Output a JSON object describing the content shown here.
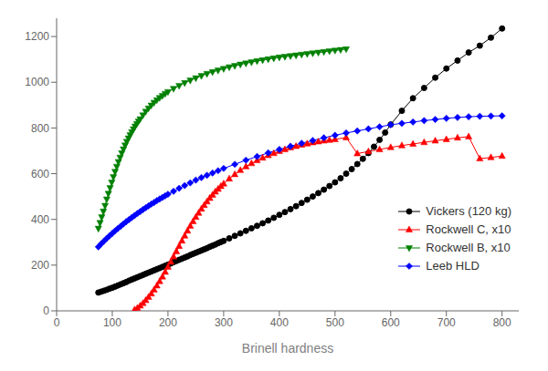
{
  "chart_data": {
    "type": "line",
    "xlabel": "Brinell hardness",
    "xlim": [
      0,
      830
    ],
    "ylim": [
      0,
      1280
    ],
    "xticks": [
      0,
      100,
      200,
      300,
      400,
      500,
      600,
      700,
      800
    ],
    "yticks": [
      0,
      200,
      400,
      600,
      800,
      1000,
      1200
    ],
    "grid": false,
    "legend": "lower right",
    "series": [
      {
        "name": "Vickers (120 kg)",
        "color": "black",
        "marker": "circle",
        "line_style": "solid",
        "x": [
          75,
          80,
          85,
          90,
          95,
          100,
          105,
          110,
          115,
          120,
          125,
          130,
          135,
          140,
          145,
          150,
          155,
          160,
          165,
          170,
          175,
          180,
          185,
          190,
          195,
          200,
          205,
          210,
          215,
          220,
          225,
          230,
          235,
          240,
          245,
          250,
          255,
          260,
          265,
          270,
          275,
          280,
          285,
          290,
          295,
          300,
          310,
          320,
          330,
          340,
          350,
          360,
          370,
          380,
          390,
          400,
          410,
          420,
          430,
          440,
          450,
          460,
          470,
          480,
          490,
          500,
          510,
          520,
          530,
          540,
          550,
          560,
          570,
          580,
          590,
          600,
          620,
          640,
          660,
          680,
          700,
          720,
          740,
          760,
          780,
          800
        ],
        "values": [
          80,
          84,
          88,
          92,
          97,
          101,
          106,
          111,
          116,
          121,
          126,
          132,
          137,
          142,
          147,
          152,
          157,
          162,
          167,
          172,
          177,
          182,
          187,
          192,
          197,
          202,
          207,
          213,
          218,
          223,
          228,
          233,
          238,
          244,
          249,
          254,
          259,
          264,
          269,
          274,
          280,
          285,
          290,
          296,
          301,
          306,
          317,
          328,
          339,
          350,
          361,
          372,
          383,
          395,
          407,
          420,
          432,
          445,
          458,
          472,
          486,
          500,
          515,
          530,
          546,
          562,
          580,
          600,
          620,
          642,
          665,
          690,
          718,
          748,
          780,
          815,
          875,
          930,
          975,
          1020,
          1060,
          1095,
          1130,
          1160,
          1195,
          1235
        ]
      },
      {
        "name": "Rockwell C, x10",
        "color": "red",
        "marker": "triangle",
        "line_style": "solid",
        "x": [
          140,
          145,
          150,
          155,
          160,
          165,
          170,
          175,
          180,
          185,
          190,
          195,
          200,
          205,
          210,
          215,
          220,
          225,
          230,
          235,
          240,
          245,
          250,
          255,
          260,
          265,
          270,
          275,
          280,
          285,
          290,
          295,
          300,
          310,
          320,
          330,
          340,
          350,
          360,
          370,
          380,
          390,
          400,
          410,
          420,
          430,
          440,
          450,
          460,
          470,
          480,
          490,
          500,
          520,
          540,
          560,
          580,
          600,
          620,
          640,
          660,
          680,
          700,
          720,
          740,
          760,
          780,
          800
        ],
        "values": [
          5,
          12,
          22,
          33,
          46,
          60,
          75,
          92,
          110,
          129,
          149,
          170,
          192,
          214,
          237,
          260,
          283,
          306,
          328,
          350,
          371,
          391,
          410,
          428,
          446,
          462,
          478,
          493,
          507,
          521,
          533,
          545,
          556,
          578,
          597,
          615,
          631,
          645,
          658,
          669,
          680,
          689,
          698,
          706,
          714,
          720,
          726,
          731,
          736,
          740,
          744,
          747,
          750,
          758,
          688,
          697,
          706,
          715,
          723,
          730,
          737,
          744,
          750,
          757,
          762,
          666,
          671,
          677
        ]
      },
      {
        "name": "Rockwell B, x10",
        "color": "green",
        "marker": "triangle-down",
        "line_style": "solid",
        "x": [
          75,
          78,
          81,
          84,
          87,
          90,
          93,
          96,
          99,
          102,
          105,
          108,
          111,
          114,
          117,
          120,
          123,
          126,
          129,
          132,
          135,
          138,
          141,
          144,
          147,
          150,
          155,
          160,
          165,
          170,
          175,
          180,
          185,
          190,
          195,
          200,
          210,
          220,
          230,
          240,
          250,
          260,
          270,
          280,
          290,
          300,
          310,
          320,
          330,
          340,
          350,
          360,
          370,
          380,
          390,
          400,
          410,
          420,
          430,
          440,
          450,
          460,
          470,
          480,
          490,
          500,
          510,
          520
        ],
        "values": [
          360,
          385,
          410,
          435,
          460,
          488,
          513,
          538,
          562,
          586,
          609,
          631,
          652,
          671,
          690,
          707,
          724,
          740,
          755,
          769,
          782,
          795,
          807,
          818,
          829,
          839,
          856,
          872,
          886,
          899,
          911,
          922,
          932,
          941,
          950,
          958,
          972,
          985,
          997,
          1008,
          1018,
          1028,
          1037,
          1045,
          1052,
          1059,
          1066,
          1072,
          1078,
          1083,
          1088,
          1093,
          1097,
          1101,
          1105,
          1109,
          1112,
          1115,
          1118,
          1121,
          1124,
          1127,
          1130,
          1133,
          1136,
          1139,
          1142,
          1145
        ]
      },
      {
        "name": "Leeb HLD",
        "color": "blue",
        "marker": "diamond",
        "line_style": "solid",
        "x": [
          75,
          80,
          85,
          90,
          95,
          100,
          105,
          110,
          115,
          120,
          125,
          130,
          135,
          140,
          145,
          150,
          155,
          160,
          165,
          170,
          175,
          180,
          185,
          190,
          195,
          200,
          210,
          220,
          230,
          240,
          250,
          260,
          270,
          280,
          290,
          300,
          320,
          340,
          360,
          380,
          400,
          420,
          440,
          460,
          480,
          500,
          520,
          540,
          560,
          580,
          600,
          620,
          640,
          660,
          680,
          700,
          720,
          740,
          760,
          780,
          800
        ],
        "values": [
          280,
          293,
          305,
          317,
          328,
          339,
          350,
          360,
          370,
          380,
          390,
          399,
          408,
          417,
          426,
          434,
          443,
          451,
          459,
          467,
          474,
          482,
          489,
          496,
          503,
          510,
          523,
          536,
          548,
          560,
          572,
          583,
          593,
          603,
          613,
          623,
          641,
          659,
          675,
          691,
          706,
          720,
          733,
          745,
          757,
          768,
          778,
          787,
          796,
          805,
          814,
          820,
          826,
          832,
          837,
          842,
          846,
          849,
          851,
          852,
          853
        ]
      }
    ]
  }
}
